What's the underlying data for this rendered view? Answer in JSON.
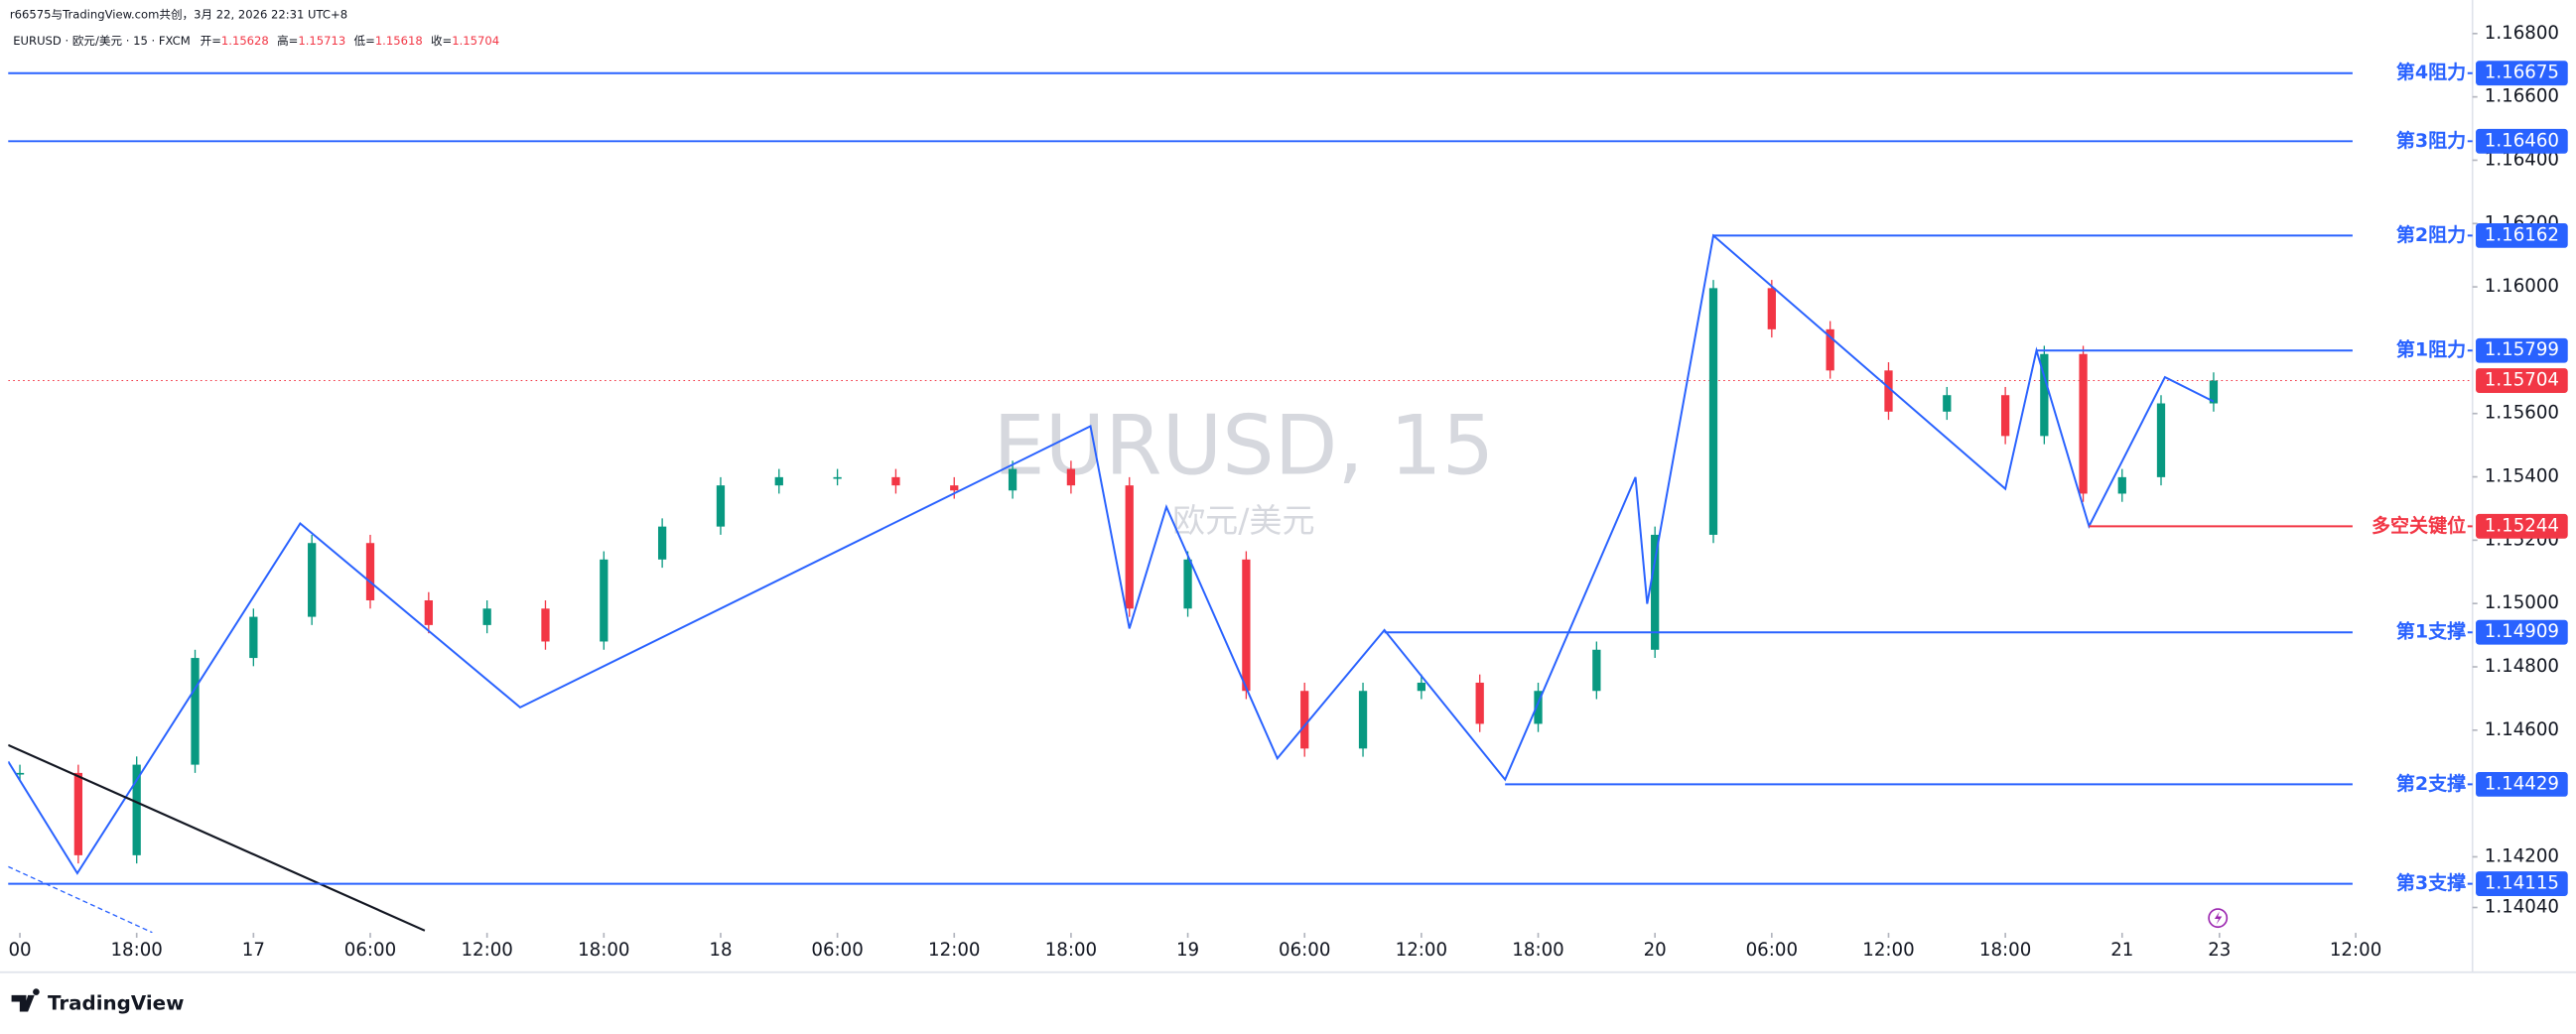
{
  "chart_data": {
    "type": "candlestick",
    "credit": "r66575与TradingView.com共创，3月 22, 2026 22:31 UTC+8",
    "title": "EURUSD · 欧元/美元 · 15 · FXCM",
    "ohlc": [
      {
        "label": "开=",
        "value": 1.15628
      },
      {
        "label": "高=",
        "value": 1.15713
      },
      {
        "label": "低=",
        "value": 1.15618
      },
      {
        "label": "收=",
        "value": 1.15704
      }
    ],
    "watermark": "EURUSD, 15",
    "watermark_sub": "欧元/美元",
    "brand": "TradingView",
    "xlim": [
      -0.6,
      126
    ],
    "ylim": [
      1.1396,
      1.1688
    ],
    "yticks": [
      {
        "value": 1.168,
        "label": "1.16800"
      },
      {
        "value": 1.166,
        "label": "1.16600"
      },
      {
        "value": 1.164,
        "label": "1.16400"
      },
      {
        "value": 1.162,
        "label": "1.16200"
      },
      {
        "value": 1.16,
        "label": "1.16000"
      },
      {
        "value": 1.156,
        "label": "1.15600"
      },
      {
        "value": 1.154,
        "label": "1.15400"
      },
      {
        "value": 1.152,
        "label": "1.15200"
      },
      {
        "value": 1.15,
        "label": "1.15000"
      },
      {
        "value": 1.148,
        "label": "1.14800"
      },
      {
        "value": 1.146,
        "label": "1.14600"
      },
      {
        "value": 1.142,
        "label": "1.14200"
      },
      {
        "value": 1.1404,
        "label": "1.14040"
      }
    ],
    "xticks": [
      {
        "value": 0,
        "label": "00"
      },
      {
        "value": 6,
        "label": "18:00"
      },
      {
        "value": 12,
        "label": "17"
      },
      {
        "value": 18,
        "label": "06:00"
      },
      {
        "value": 24,
        "label": "12:00"
      },
      {
        "value": 30,
        "label": "18:00"
      },
      {
        "value": 36,
        "label": "18"
      },
      {
        "value": 42,
        "label": "06:00"
      },
      {
        "value": 48,
        "label": "12:00"
      },
      {
        "value": 54,
        "label": "18:00"
      },
      {
        "value": 60,
        "label": "19"
      },
      {
        "value": 66,
        "label": "06:00"
      },
      {
        "value": 72,
        "label": "12:00"
      },
      {
        "value": 78,
        "label": "18:00"
      },
      {
        "value": 84,
        "label": "20"
      },
      {
        "value": 90,
        "label": "06:00"
      },
      {
        "value": 96,
        "label": "12:00"
      },
      {
        "value": 102,
        "label": "18:00"
      },
      {
        "value": 108,
        "label": "21"
      },
      {
        "value": 113,
        "label": "23"
      },
      {
        "value": 120,
        "label": "12:00"
      }
    ],
    "candles": {
      "up_color": "#089981",
      "down_color": "#f23645",
      "x": [
        0,
        3,
        6,
        9,
        12,
        15,
        18,
        21,
        24,
        27,
        30,
        33,
        36,
        39,
        42,
        45,
        48,
        51,
        54,
        57,
        60,
        63,
        66,
        69,
        72,
        75,
        78,
        81,
        84,
        87,
        90,
        93,
        96,
        99,
        102,
        104,
        106,
        108,
        110,
        112.7
      ],
      "close": [
        1.14465,
        1.14205,
        1.14491,
        1.14828,
        1.14958,
        1.15191,
        1.1501,
        1.14932,
        1.14984,
        1.1488,
        1.15139,
        1.15243,
        1.15373,
        1.15399,
        1.15399,
        1.15373,
        1.15357,
        1.15425,
        1.15373,
        1.14984,
        1.15139,
        1.14724,
        1.14542,
        1.14724,
        1.1475,
        1.1462,
        1.14724,
        1.14854,
        1.15217,
        1.15996,
        1.15866,
        1.15736,
        1.15606,
        1.15658,
        1.15529,
        1.15788,
        1.15347,
        1.15399,
        1.15632,
        1.15704
      ]
    },
    "zigzag": {
      "color": "#2962ff",
      "x": [
        -0.6,
        2.95,
        14.4,
        25.7,
        55.0,
        57.0,
        58.9,
        64.6,
        70.1,
        76.3,
        83.0,
        83.6,
        87.0,
        102.0,
        103.6,
        106.3,
        110.2,
        112.7
      ],
      "values": [
        1.14501,
        1.14148,
        1.15253,
        1.14672,
        1.1556,
        1.14921,
        1.15305,
        1.14511,
        1.14916,
        1.14444,
        1.15399,
        1.14999,
        1.16162,
        1.15362,
        1.15799,
        1.15244,
        1.15715,
        1.15638
      ]
    },
    "trendlines": [
      {
        "color": "#131722",
        "dashed": false,
        "x": [
          -0.6,
          20.8
        ],
        "values": [
          1.14553,
          1.13967
        ]
      },
      {
        "color": "#2962ff",
        "dashed": true,
        "x": [
          -0.6,
          6.8
        ],
        "values": [
          1.14169,
          1.13961
        ]
      }
    ],
    "levels": [
      {
        "name": "第4阻力",
        "value": 1.16675,
        "color": "#2962ff"
      },
      {
        "name": "第3阻力",
        "value": 1.1646,
        "value_label": "1.16460",
        "color": "#2962ff"
      },
      {
        "name": "第2阻力",
        "value": 1.16162,
        "x_start": 87.0,
        "color": "#2962ff"
      },
      {
        "name": "第1阻力",
        "value": 1.15799,
        "x_start": 103.6,
        "color": "#2962ff"
      },
      {
        "name": "多空关键位",
        "value": 1.15244,
        "x_start": 106.3,
        "color": "#f23645"
      },
      {
        "name": "第1支撑",
        "value": 1.14909,
        "x_start": 70.1,
        "color": "#2962ff"
      },
      {
        "name": "第2支撑",
        "value": 1.14429,
        "x_start": 76.3,
        "color": "#2962ff"
      },
      {
        "name": "第3支撑",
        "value": 1.14115,
        "color": "#2962ff"
      }
    ],
    "last_price": {
      "value": 1.15704,
      "color": "#f23645"
    }
  }
}
